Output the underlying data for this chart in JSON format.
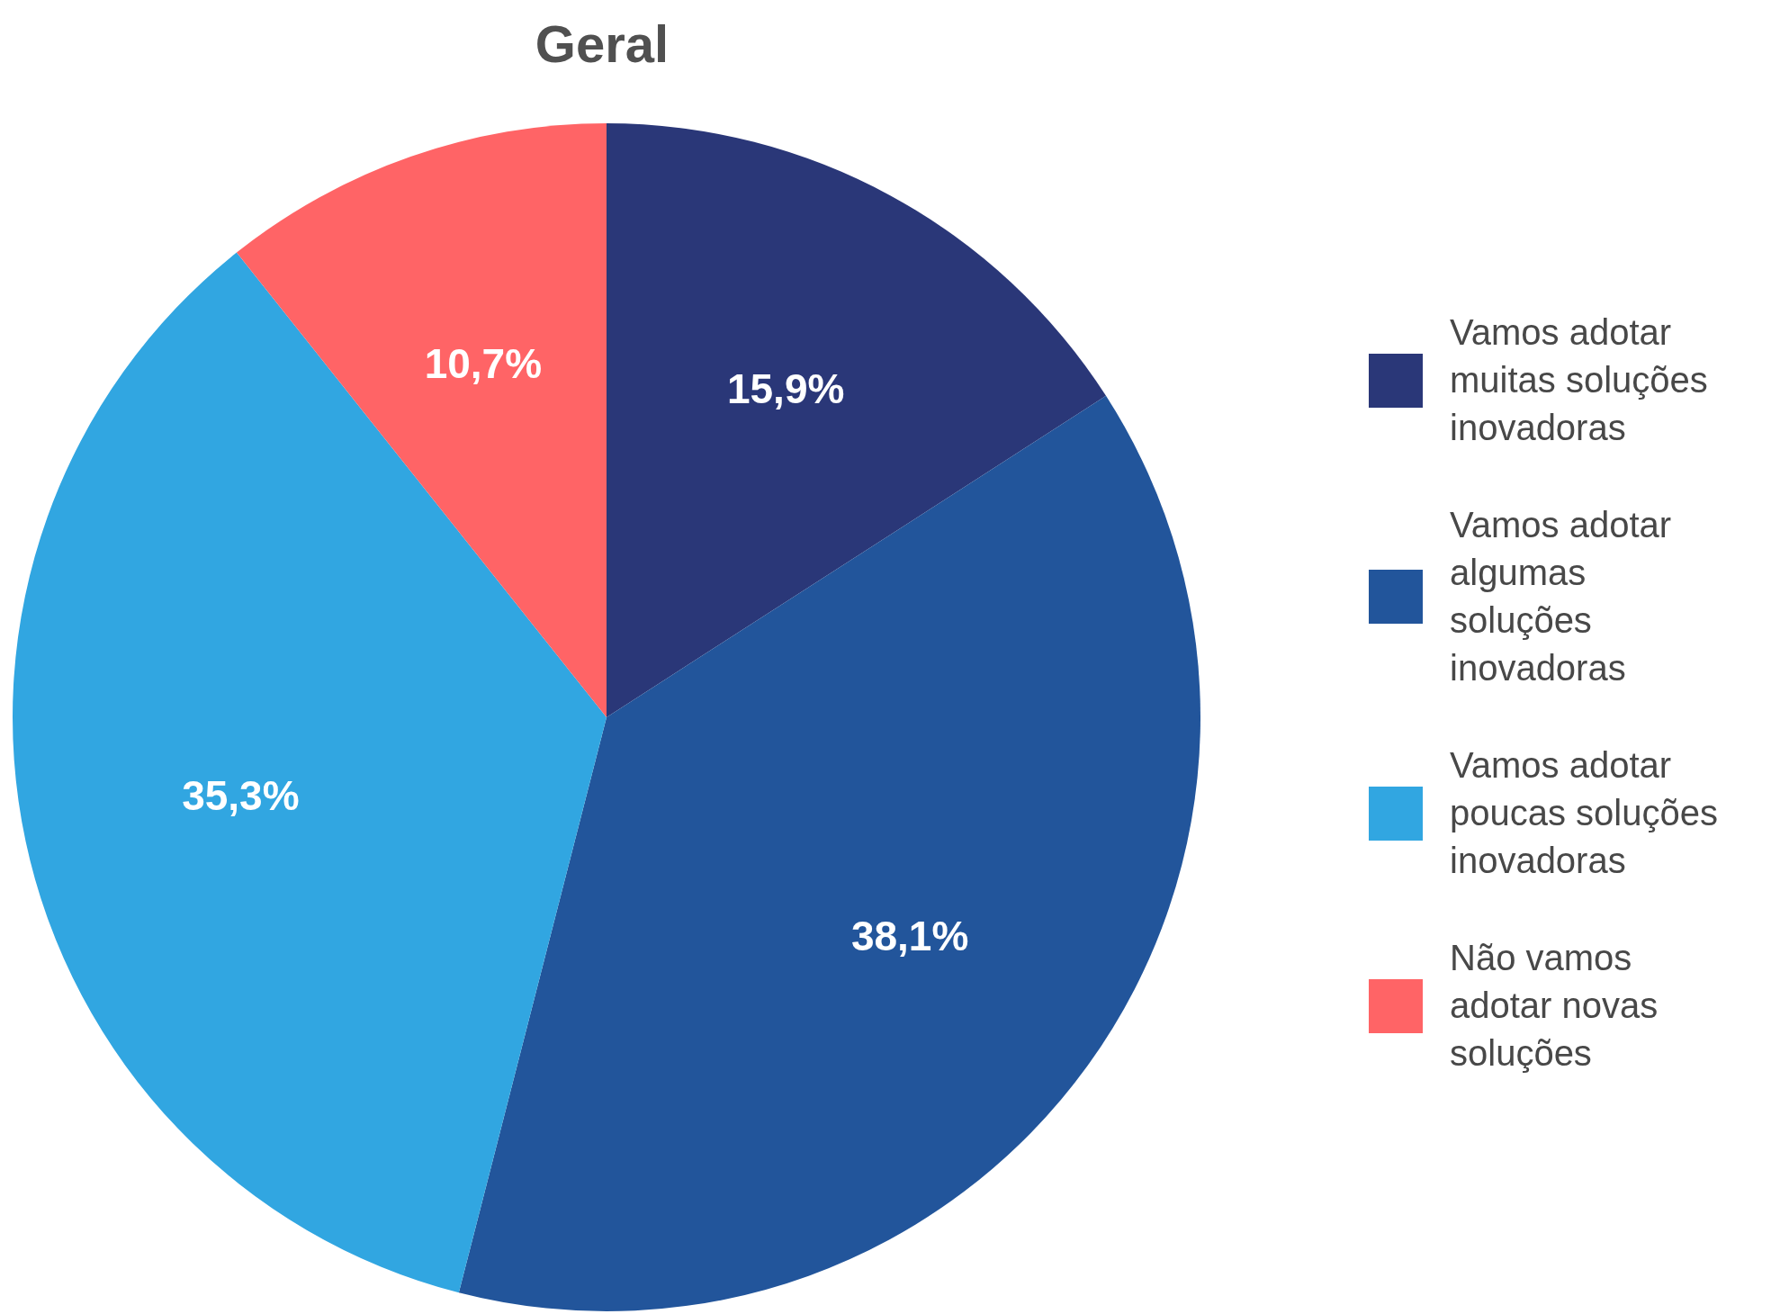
{
  "chart_data": {
    "type": "pie",
    "title": "Geral",
    "categories": [
      "Vamos adotar muitas soluções inovadoras",
      "Vamos adotar algumas soluções inovadoras",
      "Vamos adotar poucas soluções inovadoras",
      "Não vamos adotar novas soluções"
    ],
    "values": [
      15.9,
      38.1,
      35.3,
      10.7
    ],
    "colors": [
      "#2a3778",
      "#22559b",
      "#31a6e1",
      "#ff6466"
    ],
    "value_labels": [
      "15,9%",
      "38,1%",
      "35,3%",
      "10,7%"
    ],
    "legend": "right"
  }
}
